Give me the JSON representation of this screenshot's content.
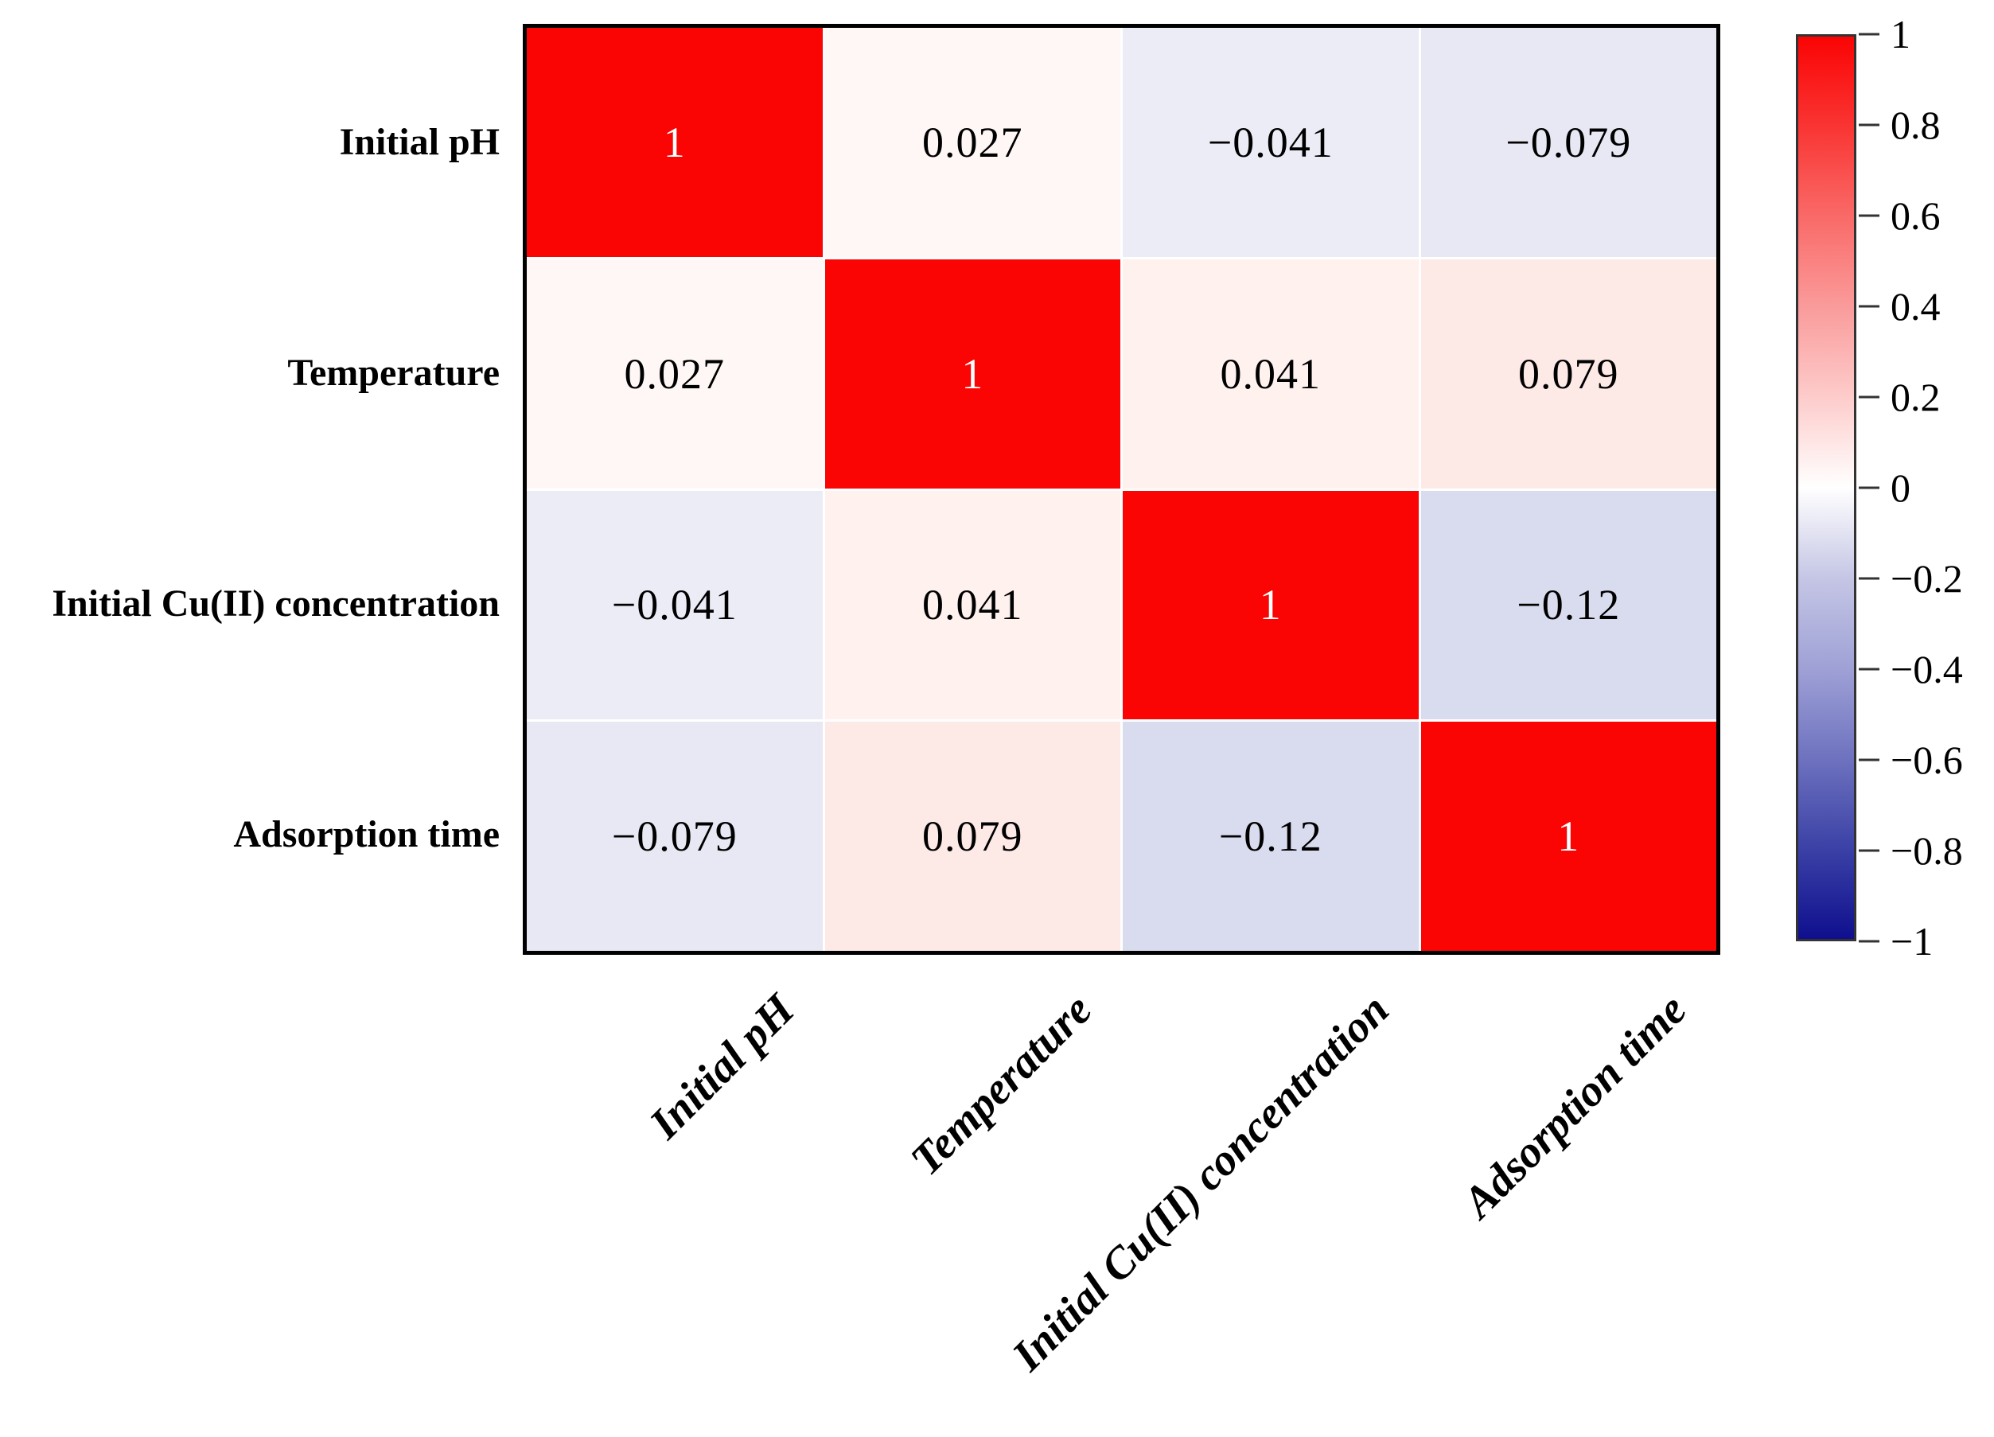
{
  "chart_data": {
    "type": "heatmap",
    "title": "",
    "categories": [
      "Initial pH",
      "Temperature",
      "Initial Cu(II) concentration",
      "Adsorption time"
    ],
    "matrix": [
      [
        1,
        0.027,
        -0.041,
        -0.079
      ],
      [
        0.027,
        1,
        0.041,
        0.079
      ],
      [
        -0.041,
        0.041,
        1,
        -0.12
      ],
      [
        -0.079,
        0.079,
        -0.12,
        1
      ]
    ],
    "cell_labels": [
      [
        "1",
        "0.027",
        "−0.041",
        "−0.079"
      ],
      [
        "0.027",
        "1",
        "0.041",
        "0.079"
      ],
      [
        "−0.041",
        "0.041",
        "1",
        "−0.12"
      ],
      [
        "−0.079",
        "0.079",
        "−0.12",
        "1"
      ]
    ],
    "cell_colors": [
      [
        "#FA0404",
        "#FEF7F5",
        "#EBECF6",
        "#E7E8F3"
      ],
      [
        "#FEF7F5",
        "#FA0404",
        "#FEF1EE",
        "#FDE9E6"
      ],
      [
        "#EBECF6",
        "#FEF1EE",
        "#FA0404",
        "#D9DBEE"
      ],
      [
        "#E7E8F3",
        "#FDE9E6",
        "#D9DBEE",
        "#FA0404"
      ]
    ],
    "diagonal_value_color": "#FFFFFF",
    "value_color": "#000000",
    "grid_line_color": "#FFFFFF",
    "matrix_border_color": "#000000",
    "legend_position": "right",
    "colorbar": {
      "min": -1,
      "max": 1,
      "tick_labels": [
        "1",
        "0.8",
        "0.6",
        "0.4",
        "0.2",
        "0",
        "−0.2",
        "−0.4",
        "−0.6",
        "−0.8",
        "−1"
      ],
      "gradient_stops": [
        {
          "pos": 0.0,
          "color": "#FA0404"
        },
        {
          "pos": 0.1,
          "color": "#F93533"
        },
        {
          "pos": 0.2,
          "color": "#F96A68"
        },
        {
          "pos": 0.3,
          "color": "#FA9B9B"
        },
        {
          "pos": 0.4,
          "color": "#FDCCCB"
        },
        {
          "pos": 0.5,
          "color": "#FFFFFF"
        },
        {
          "pos": 0.6,
          "color": "#C5C6E5"
        },
        {
          "pos": 0.7,
          "color": "#9FA1D6"
        },
        {
          "pos": 0.8,
          "color": "#6E72BF"
        },
        {
          "pos": 0.9,
          "color": "#3B41A6"
        },
        {
          "pos": 1.0,
          "color": "#0F0F8E"
        }
      ]
    }
  }
}
